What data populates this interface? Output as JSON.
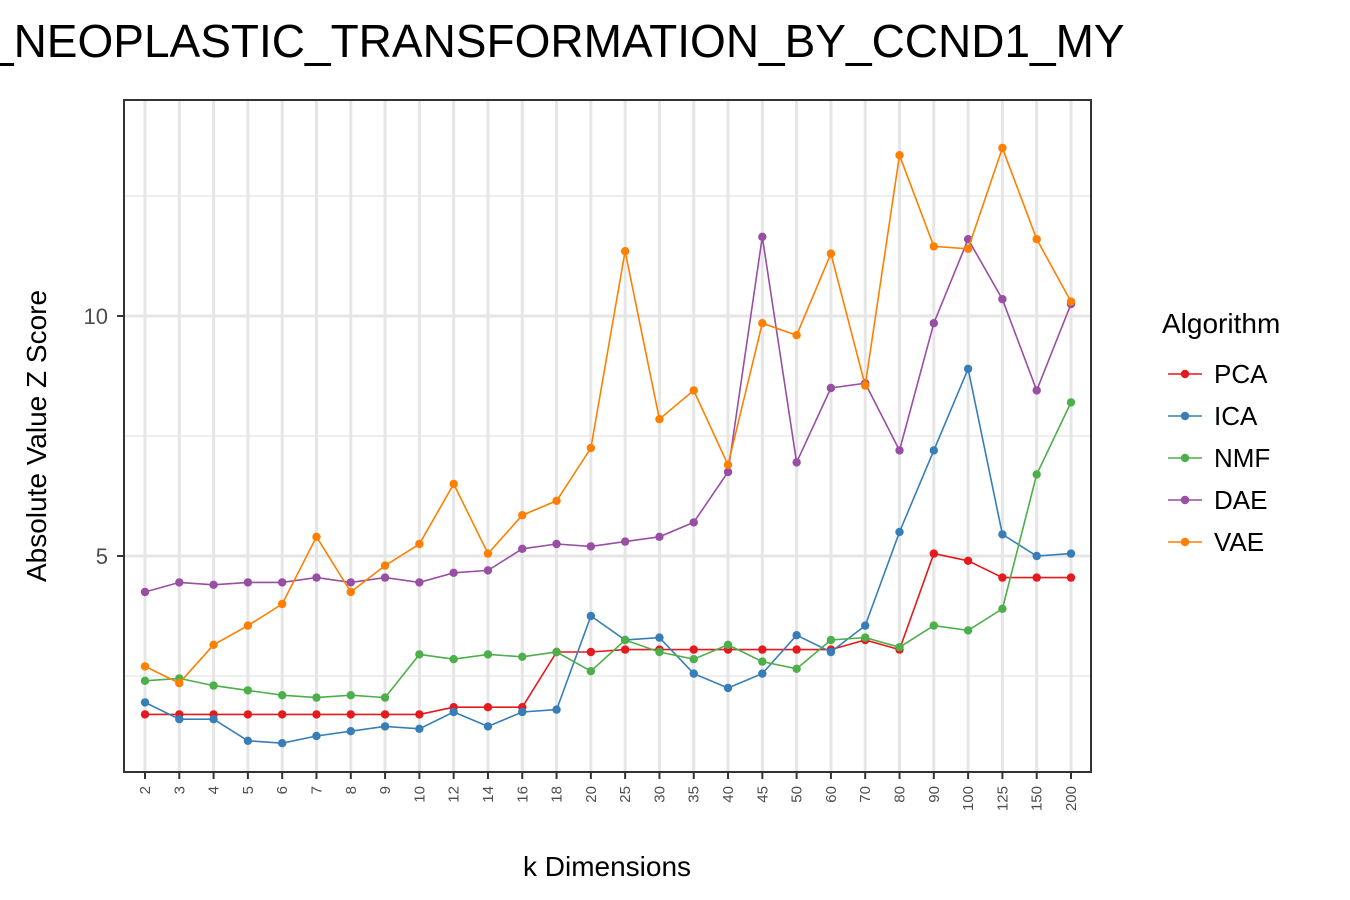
{
  "chart_data": {
    "type": "line",
    "title": "_NEOPLASTIC_TRANSFORMATION_BY_CCND1_MY",
    "xlabel": "k Dimensions",
    "ylabel": "Absolute Value Z Score",
    "categories": [
      "2",
      "3",
      "4",
      "5",
      "6",
      "7",
      "8",
      "9",
      "10",
      "12",
      "14",
      "16",
      "18",
      "20",
      "25",
      "30",
      "35",
      "40",
      "45",
      "50",
      "60",
      "70",
      "80",
      "90",
      "100",
      "125",
      "150",
      "200"
    ],
    "ylim": [
      0.5,
      14.5
    ],
    "y_ticks": [
      5,
      10
    ],
    "grid": true,
    "legend_title": "Algorithm",
    "legend_position": "right",
    "series": [
      {
        "name": "PCA",
        "color": "#e41a1c",
        "values": [
          1.7,
          1.7,
          1.7,
          1.7,
          1.7,
          1.7,
          1.7,
          1.7,
          1.7,
          1.85,
          1.85,
          1.85,
          3.0,
          3.0,
          3.05,
          3.05,
          3.05,
          3.05,
          3.05,
          3.05,
          3.05,
          3.25,
          3.05,
          5.05,
          4.9,
          4.55,
          4.55,
          4.55
        ]
      },
      {
        "name": "ICA",
        "color": "#377eb8",
        "values": [
          1.95,
          1.6,
          1.6,
          1.15,
          1.1,
          1.25,
          1.35,
          1.45,
          1.4,
          1.75,
          1.45,
          1.75,
          1.8,
          3.75,
          3.25,
          3.3,
          2.55,
          2.25,
          2.55,
          3.35,
          3.0,
          3.55,
          5.5,
          7.2,
          8.9,
          5.45,
          5.0,
          5.05
        ]
      },
      {
        "name": "NMF",
        "color": "#4daf4a",
        "values": [
          2.4,
          2.45,
          2.3,
          2.2,
          2.1,
          2.05,
          2.1,
          2.05,
          2.95,
          2.85,
          2.95,
          2.9,
          3.0,
          2.6,
          3.25,
          3.0,
          2.85,
          3.15,
          2.8,
          2.65,
          3.25,
          3.3,
          3.1,
          3.55,
          3.45,
          3.9,
          6.7,
          8.2
        ]
      },
      {
        "name": "DAE",
        "color": "#984ea3",
        "values": [
          4.25,
          4.45,
          4.4,
          4.45,
          4.45,
          4.55,
          4.45,
          4.55,
          4.45,
          4.65,
          4.7,
          5.15,
          5.25,
          5.2,
          5.3,
          5.4,
          5.7,
          6.75,
          11.65,
          6.95,
          8.5,
          8.6,
          7.2,
          9.85,
          11.6,
          10.35,
          8.45,
          10.25
        ]
      },
      {
        "name": "VAE",
        "color": "#ff7f00",
        "values": [
          2.7,
          2.35,
          3.15,
          3.55,
          4.0,
          5.4,
          4.25,
          4.8,
          5.25,
          6.5,
          5.05,
          5.85,
          6.15,
          7.25,
          11.35,
          7.85,
          8.45,
          6.9,
          9.85,
          9.6,
          11.3,
          8.55,
          13.35,
          11.45,
          11.4,
          13.5,
          11.6,
          10.3
        ]
      }
    ]
  }
}
